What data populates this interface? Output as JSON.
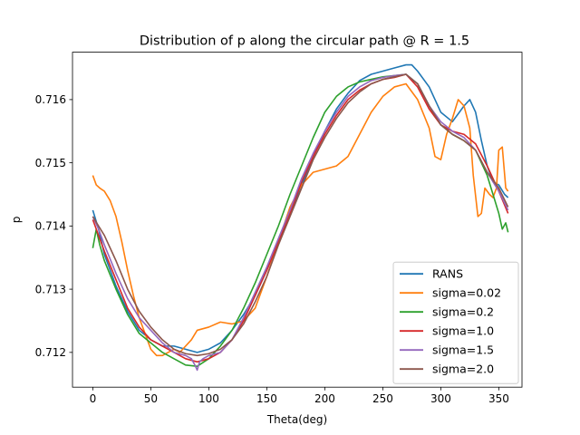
{
  "chart_data": {
    "type": "line",
    "title": "Distribution of p along the circular path @ R = 1.5",
    "xlabel": "Theta(deg)",
    "ylabel": "p",
    "xlim": [
      -17.5,
      370
    ],
    "ylim": [
      0.71145,
      0.71675
    ],
    "xticks": [
      0,
      50,
      100,
      150,
      200,
      250,
      300,
      350
    ],
    "yticks": [
      0.712,
      0.713,
      0.714,
      0.715,
      0.716
    ],
    "ytick_labels": [
      "0.712",
      "0.713",
      "0.714",
      "0.715",
      "0.716"
    ],
    "grid": false,
    "legend_position": "lower right",
    "series": [
      {
        "name": "RANS",
        "color": "#1f77b4",
        "x": [
          0,
          5,
          10,
          20,
          30,
          40,
          50,
          60,
          70,
          80,
          90,
          100,
          110,
          120,
          130,
          140,
          150,
          160,
          170,
          180,
          190,
          200,
          210,
          220,
          230,
          240,
          250,
          260,
          270,
          275,
          280,
          290,
          300,
          310,
          320,
          325,
          330,
          335,
          340,
          345,
          350,
          355,
          358
        ],
        "y": [
          0.71425,
          0.71395,
          0.71355,
          0.71305,
          0.71265,
          0.71235,
          0.7122,
          0.7121,
          0.7121,
          0.71205,
          0.712,
          0.71205,
          0.71215,
          0.71235,
          0.7126,
          0.7129,
          0.7133,
          0.71375,
          0.7142,
          0.71465,
          0.7151,
          0.7155,
          0.71585,
          0.7161,
          0.7163,
          0.7164,
          0.71645,
          0.7165,
          0.71655,
          0.71655,
          0.71645,
          0.7162,
          0.7158,
          0.71565,
          0.7159,
          0.716,
          0.7158,
          0.71535,
          0.71495,
          0.7147,
          0.71465,
          0.7145,
          0.71445
        ]
      },
      {
        "name": "sigma=0.02",
        "color": "#ff7f0e",
        "x": [
          0,
          3,
          6,
          10,
          15,
          20,
          25,
          30,
          35,
          40,
          45,
          50,
          55,
          60,
          65,
          70,
          75,
          80,
          85,
          90,
          100,
          110,
          120,
          130,
          140,
          150,
          160,
          170,
          180,
          190,
          200,
          210,
          220,
          230,
          240,
          250,
          260,
          270,
          280,
          290,
          295,
          300,
          305,
          310,
          315,
          320,
          325,
          328,
          332,
          335,
          338,
          340,
          342,
          345,
          348,
          350,
          353,
          356,
          358
        ],
        "y": [
          0.7148,
          0.71465,
          0.7146,
          0.71455,
          0.7144,
          0.71415,
          0.71375,
          0.7133,
          0.7129,
          0.71255,
          0.7123,
          0.71205,
          0.71195,
          0.71195,
          0.712,
          0.71205,
          0.712,
          0.7121,
          0.7122,
          0.71235,
          0.7124,
          0.71248,
          0.71245,
          0.7125,
          0.7127,
          0.7132,
          0.71375,
          0.7143,
          0.71465,
          0.71485,
          0.7149,
          0.71495,
          0.7151,
          0.71545,
          0.7158,
          0.71605,
          0.7162,
          0.71625,
          0.716,
          0.71555,
          0.7151,
          0.71505,
          0.71545,
          0.7157,
          0.716,
          0.7159,
          0.71555,
          0.7148,
          0.71415,
          0.7142,
          0.7146,
          0.71455,
          0.7145,
          0.71445,
          0.7146,
          0.7152,
          0.71525,
          0.7146,
          0.71455
        ]
      },
      {
        "name": "sigma=0.2",
        "color": "#2ca02c",
        "x": [
          0,
          3,
          6,
          10,
          20,
          30,
          40,
          50,
          60,
          70,
          80,
          90,
          100,
          110,
          120,
          130,
          140,
          150,
          160,
          170,
          180,
          190,
          200,
          210,
          220,
          230,
          240,
          250,
          260,
          270,
          280,
          290,
          300,
          310,
          320,
          330,
          340,
          345,
          350,
          353,
          356,
          358
        ],
        "y": [
          0.71365,
          0.71395,
          0.7137,
          0.71345,
          0.713,
          0.7126,
          0.7123,
          0.71215,
          0.712,
          0.7119,
          0.7118,
          0.71178,
          0.7119,
          0.7121,
          0.71235,
          0.7127,
          0.7131,
          0.71355,
          0.714,
          0.7145,
          0.71495,
          0.7154,
          0.7158,
          0.71605,
          0.7162,
          0.71628,
          0.71632,
          0.71636,
          0.71638,
          0.7164,
          0.71625,
          0.7159,
          0.7156,
          0.71545,
          0.71535,
          0.7152,
          0.7148,
          0.7145,
          0.7142,
          0.71395,
          0.71405,
          0.7139
        ]
      },
      {
        "name": "sigma=1.0",
        "color": "#d62728",
        "x": [
          0,
          5,
          10,
          20,
          30,
          40,
          50,
          60,
          70,
          80,
          90,
          100,
          110,
          120,
          130,
          140,
          150,
          160,
          170,
          180,
          190,
          200,
          210,
          220,
          230,
          240,
          250,
          260,
          270,
          280,
          290,
          300,
          310,
          320,
          330,
          340,
          350,
          358
        ],
        "y": [
          0.7141,
          0.71385,
          0.7136,
          0.71315,
          0.7127,
          0.7124,
          0.7122,
          0.7121,
          0.712,
          0.7119,
          0.71185,
          0.7119,
          0.712,
          0.7122,
          0.7125,
          0.7129,
          0.7133,
          0.71375,
          0.7142,
          0.7147,
          0.7151,
          0.71545,
          0.71575,
          0.716,
          0.71615,
          0.71625,
          0.71632,
          0.71635,
          0.7164,
          0.7162,
          0.71585,
          0.7156,
          0.7155,
          0.71545,
          0.7153,
          0.71495,
          0.71455,
          0.7142
        ]
      },
      {
        "name": "sigma=1.5",
        "color": "#9467bd",
        "x": [
          0,
          5,
          10,
          20,
          30,
          40,
          50,
          60,
          70,
          80,
          85,
          88,
          90,
          92,
          95,
          100,
          110,
          120,
          130,
          140,
          150,
          160,
          170,
          180,
          190,
          200,
          210,
          220,
          230,
          240,
          250,
          260,
          270,
          280,
          290,
          300,
          310,
          320,
          330,
          340,
          350,
          358
        ],
        "y": [
          0.71415,
          0.71395,
          0.7137,
          0.71325,
          0.71285,
          0.71255,
          0.71235,
          0.71215,
          0.712,
          0.71195,
          0.7119,
          0.7118,
          0.71172,
          0.71185,
          0.7119,
          0.71195,
          0.712,
          0.7122,
          0.71255,
          0.71295,
          0.71335,
          0.7138,
          0.71425,
          0.71475,
          0.71515,
          0.7155,
          0.7158,
          0.71605,
          0.7162,
          0.7163,
          0.71635,
          0.71638,
          0.7164,
          0.71625,
          0.7159,
          0.71565,
          0.7155,
          0.7154,
          0.7152,
          0.71485,
          0.71455,
          0.71425
        ]
      },
      {
        "name": "sigma=2.0",
        "color": "#8c564b",
        "x": [
          0,
          5,
          10,
          20,
          30,
          40,
          50,
          60,
          70,
          80,
          90,
          100,
          110,
          120,
          130,
          140,
          150,
          160,
          170,
          180,
          190,
          200,
          210,
          220,
          230,
          240,
          250,
          260,
          270,
          280,
          290,
          300,
          310,
          320,
          330,
          340,
          350,
          358
        ],
        "y": [
          0.71415,
          0.714,
          0.71385,
          0.71345,
          0.713,
          0.71265,
          0.7124,
          0.7122,
          0.71205,
          0.71198,
          0.71195,
          0.71198,
          0.71205,
          0.7122,
          0.71245,
          0.7128,
          0.7132,
          0.7137,
          0.71415,
          0.7146,
          0.71505,
          0.7154,
          0.7157,
          0.71595,
          0.71612,
          0.71625,
          0.71632,
          0.71636,
          0.7164,
          0.71625,
          0.7159,
          0.7156,
          0.71545,
          0.71535,
          0.7152,
          0.71485,
          0.7146,
          0.7143
        ]
      }
    ]
  }
}
